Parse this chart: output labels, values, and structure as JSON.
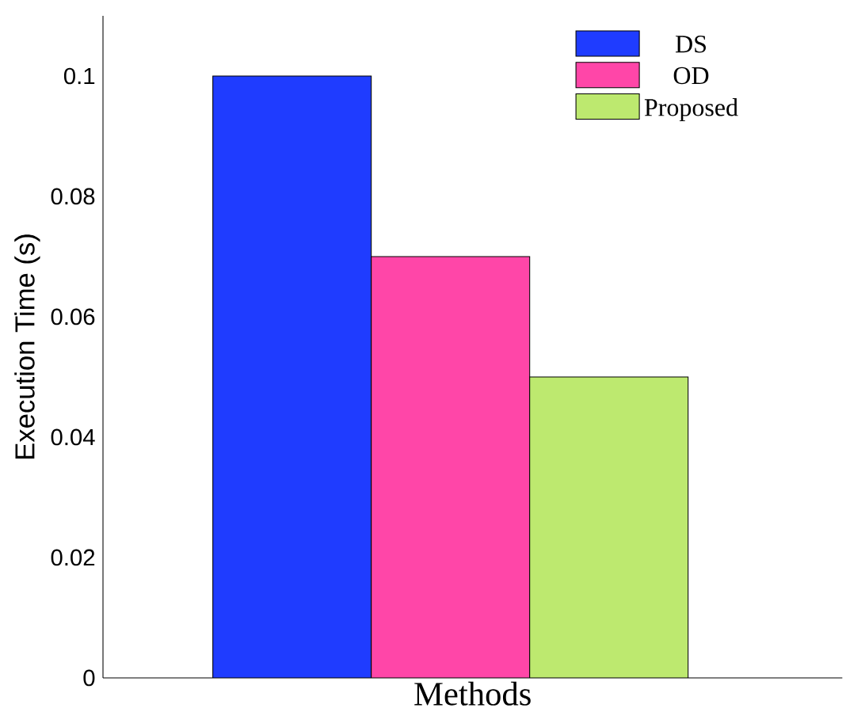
{
  "chart_data": {
    "type": "bar",
    "xlabel": "Methods",
    "ylabel": "Execution Time (s)",
    "categories": [
      null
    ],
    "series": [
      {
        "name": "DS",
        "color": "#1f3cff",
        "values": [
          0.1
        ]
      },
      {
        "name": "OD",
        "color": "#ff46a8",
        "values": [
          0.07
        ]
      },
      {
        "name": "Proposed",
        "color": "#bde96f",
        "values": [
          0.05
        ]
      }
    ],
    "ylim": [
      0,
      0.11
    ],
    "yticks": [
      0,
      0.02,
      0.04,
      0.06,
      0.08,
      0.1
    ],
    "grid": false,
    "legend": "top right"
  }
}
